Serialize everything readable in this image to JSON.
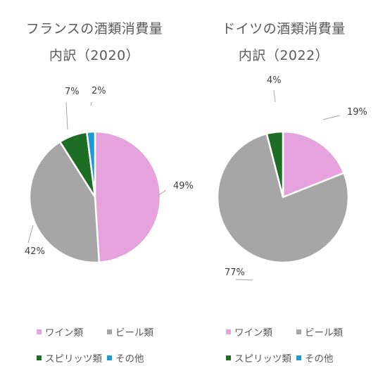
{
  "chart_data": [
    {
      "type": "pie",
      "title": [
        "フランスの酒類消費量",
        "内訳（2020）"
      ],
      "categories": [
        "ワイン類",
        "ビール類",
        "スピリッツ類",
        "その他"
      ],
      "values": [
        49,
        42,
        7,
        2
      ],
      "labels": [
        "49%",
        "42%",
        "7%",
        "2%"
      ],
      "colors": [
        "#e6a2dd",
        "#a6a6a6",
        "#1e6d25",
        "#1a9ad6"
      ],
      "legend": "bottom"
    },
    {
      "type": "pie",
      "title": [
        "ドイツの酒類消費量",
        "内訳（2022）"
      ],
      "categories": [
        "ワイン類",
        "ビール類",
        "スピリッツ類",
        "その他"
      ],
      "values": [
        19,
        77,
        4,
        0
      ],
      "labels": [
        "19%",
        "77%",
        "4%",
        ""
      ],
      "colors": [
        "#e6a2dd",
        "#a6a6a6",
        "#1e6d25",
        "#1a9ad6"
      ],
      "legend": "bottom"
    }
  ]
}
